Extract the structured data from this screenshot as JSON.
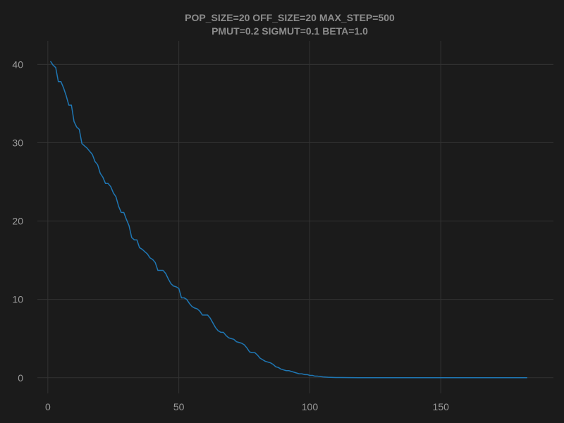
{
  "chart_data": {
    "type": "line",
    "title": [
      "POP_SIZE=20 OFF_SIZE=20 MAX_STEP=500",
      "PMUT=0.2 SIGMUT=0.1 BETA=1.0"
    ],
    "xlabel": "",
    "ylabel": "",
    "xlim": [
      -4,
      193
    ],
    "ylim": [
      -2,
      43
    ],
    "xticks": [
      0,
      50,
      100,
      150
    ],
    "yticks": [
      0,
      10,
      20,
      30,
      40
    ],
    "grid": true,
    "legend": "none",
    "series": [
      {
        "color": "#1f77b4",
        "x": [
          1,
          2,
          3,
          4,
          5,
          6,
          7,
          8,
          9,
          10,
          11,
          12,
          13,
          14,
          15,
          16,
          17,
          18,
          19,
          20,
          21,
          22,
          23,
          24,
          25,
          26,
          27,
          28,
          29,
          30,
          31,
          32,
          33,
          34,
          35,
          36,
          37,
          38,
          39,
          40,
          41,
          42,
          43,
          44,
          45,
          46,
          47,
          48,
          49,
          50,
          51,
          52,
          53,
          54,
          55,
          56,
          57,
          58,
          59,
          60,
          61,
          62,
          63,
          64,
          65,
          66,
          67,
          68,
          69,
          70,
          71,
          72,
          73,
          74,
          75,
          76,
          77,
          78,
          79,
          80,
          81,
          82,
          83,
          84,
          85,
          86,
          87,
          88,
          89,
          90,
          91,
          92,
          93,
          94,
          95,
          96,
          97,
          98,
          99,
          100,
          101,
          102,
          103,
          104,
          105,
          106,
          107,
          108,
          109,
          110,
          112,
          115,
          120,
          130,
          140,
          150,
          160,
          170,
          183
        ],
        "y": [
          40.4,
          39.9,
          39.6,
          37.8,
          37.8,
          37.0,
          36.0,
          34.8,
          34.8,
          32.7,
          32.0,
          31.7,
          29.9,
          29.6,
          29.3,
          28.9,
          28.5,
          27.6,
          27.2,
          26.1,
          25.6,
          24.8,
          24.8,
          24.4,
          23.6,
          23.1,
          21.9,
          21.1,
          21.1,
          20.2,
          19.4,
          17.9,
          17.6,
          17.6,
          16.6,
          16.4,
          16.1,
          15.8,
          15.3,
          15.1,
          14.7,
          13.7,
          13.7,
          13.7,
          13.3,
          12.6,
          12.0,
          11.7,
          11.6,
          11.4,
          10.2,
          10.2,
          10.0,
          9.5,
          9.1,
          8.9,
          8.8,
          8.5,
          8.0,
          8.0,
          8.0,
          7.6,
          7.0,
          6.4,
          6.0,
          5.8,
          5.8,
          5.4,
          5.1,
          5.0,
          4.9,
          4.6,
          4.5,
          4.4,
          4.2,
          3.8,
          3.3,
          3.2,
          3.2,
          2.9,
          2.5,
          2.3,
          2.1,
          2.0,
          1.9,
          1.7,
          1.4,
          1.3,
          1.1,
          1.0,
          0.9,
          0.9,
          0.8,
          0.7,
          0.6,
          0.5,
          0.5,
          0.4,
          0.4,
          0.3,
          0.3,
          0.2,
          0.2,
          0.15,
          0.1,
          0.08,
          0.06,
          0.05,
          0.04,
          0.03,
          0.02,
          0.01,
          0.005,
          0.0,
          0.0,
          0.0,
          0.0,
          0.0,
          0.0
        ]
      }
    ]
  }
}
